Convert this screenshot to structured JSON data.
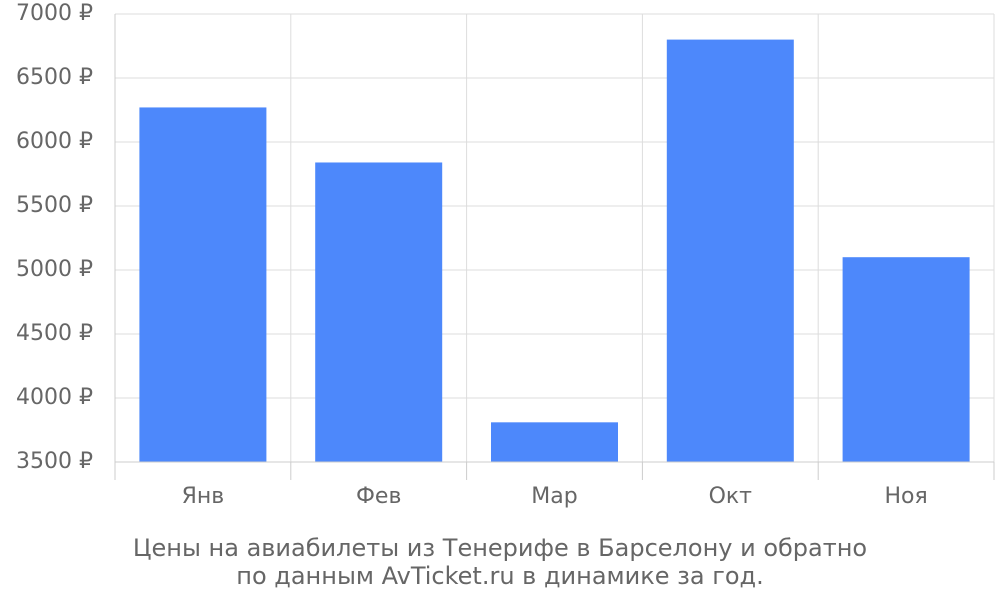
{
  "chart_data": {
    "type": "bar",
    "categories": [
      "Янв",
      "Фев",
      "Мар",
      "Окт",
      "Ноя"
    ],
    "values": [
      6270,
      5840,
      3810,
      6800,
      5100
    ],
    "ylim": [
      3500,
      7000
    ],
    "yticks": [
      3500,
      4000,
      4500,
      5000,
      5500,
      6000,
      6500,
      7000
    ],
    "ytick_labels": [
      "3500 ₽",
      "4000 ₽",
      "4500 ₽",
      "5000 ₽",
      "5500 ₽",
      "6000 ₽",
      "6500 ₽",
      "7000 ₽"
    ],
    "bar_color": "#4d88fb",
    "grid": true,
    "caption": [
      "Цены на авиабилеты из Тенерифе в Барселону и обратно",
      "по данным AvTicket.ru в динамике за год."
    ]
  }
}
